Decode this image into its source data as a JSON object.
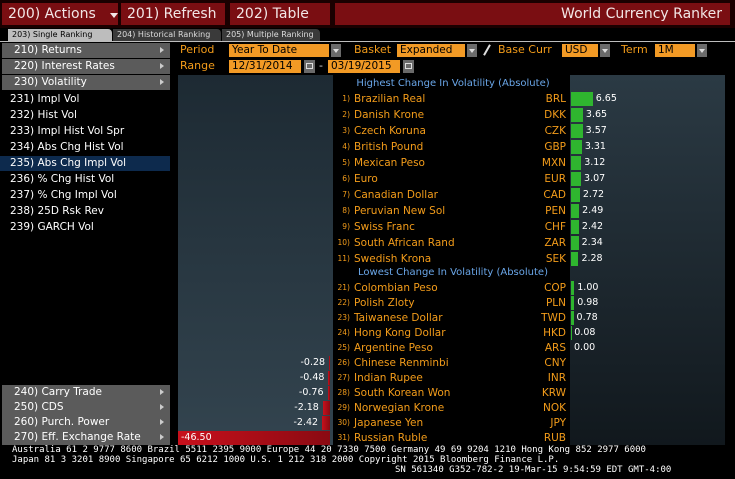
{
  "toolbar": {
    "buttons": [
      "200) Actions",
      "201) Refresh",
      "202) Table"
    ],
    "title": "World Currency Ranker"
  },
  "tabs": [
    "203) Single Ranking",
    "204) Historical Ranking",
    "205) Multiple Ranking"
  ],
  "menu": {
    "top": [
      "210) Returns",
      "220) Interest Rates",
      "230) Volatility"
    ],
    "sub": [
      "231) Impl Vol",
      "232) Hist Vol",
      "233) Impl Hist Vol Spr",
      "234) Abs Chg Hist Vol",
      "235) Abs Chg Impl Vol",
      "236) % Chg Hist Vol",
      "237) % Chg Impl Vol",
      "238) 25D Rsk Rev",
      "239) GARCH Vol"
    ],
    "bottom": [
      "240) Carry Trade",
      "250) CDS",
      "260) Purch. Power",
      "270) Eff. Exchange Rate"
    ]
  },
  "controls": {
    "period_label": "Period",
    "period": "Year To Date",
    "basket_label": "Basket",
    "basket": "Expanded Ma",
    "base_label": "Base Curr",
    "base": "USD",
    "term_label": "Term",
    "term": "1M",
    "range_label": "Range",
    "start": "12/31/2014",
    "separator": "-",
    "end": "03/19/2015"
  },
  "highest": {
    "title": "Highest Change In Volatility (Absolute)",
    "ranks": [
      "1)",
      "2)",
      "3)",
      "4)",
      "5)",
      "6)",
      "7)",
      "8)",
      "9)",
      "10)",
      "11)"
    ],
    "names": [
      "Brazilian Real",
      "Danish Krone",
      "Czech Koruna",
      "British Pound",
      "Mexican Peso",
      "Euro",
      "Canadian Dollar",
      "Peruvian New Sol",
      "Swiss Franc",
      "South African Rand",
      "Swedish Krona"
    ],
    "codes": [
      "BRL",
      "DKK",
      "CZK",
      "GBP",
      "MXN",
      "EUR",
      "CAD",
      "PEN",
      "CHF",
      "ZAR",
      "SEK"
    ],
    "values": [
      6.65,
      3.65,
      3.57,
      3.31,
      3.12,
      3.07,
      2.72,
      2.49,
      2.42,
      2.34,
      2.28
    ],
    "value_labels": [
      "6.65",
      "3.65",
      "3.57",
      "3.31",
      "3.12",
      "3.07",
      "2.72",
      "2.49",
      "2.42",
      "2.34",
      "2.28"
    ]
  },
  "lowest": {
    "title": "Lowest Change In Volatility (Absolute)",
    "ranks": [
      "21)",
      "22)",
      "23)",
      "24)",
      "25)",
      "26)",
      "27)",
      "28)",
      "29)",
      "30)",
      "31)"
    ],
    "names": [
      "Colombian Peso",
      "Polish Zloty",
      "Taiwanese Dollar",
      "Hong Kong Dollar",
      "Argentine Peso",
      "Chinese Renminbi",
      "Indian Rupee",
      "South Korean Won",
      "Norwegian Krone",
      "Japanese Yen",
      "Russian Ruble"
    ],
    "codes": [
      "COP",
      "PLN",
      "TWD",
      "HKD",
      "ARS",
      "CNY",
      "INR",
      "KRW",
      "NOK",
      "JPY",
      "RUB"
    ],
    "values": [
      1.0,
      0.98,
      0.78,
      0.08,
      0.0,
      -0.28,
      -0.48,
      -0.76,
      -2.18,
      -2.42,
      -46.5
    ],
    "value_labels": [
      "1.00",
      "0.98",
      "0.78",
      "0.08",
      "0.00",
      "-0.28",
      "-0.48",
      "-0.76",
      "-2.18",
      "-2.42",
      "-46.50"
    ]
  },
  "footer": [
    "Australia 61 2 9777 8600 Brazil 5511 2395 9000 Europe 44 20 7330 7500 Germany 49 69 9204 1210 Hong Kong 852 2977 6000",
    "Japan 81 3 3201 8900         Singapore 65 6212 1000          U.S. 1 212 318 2000          Copyright 2015 Bloomberg Finance L.P.",
    "SN 561340 G352-782-2 19-Mar-15  9:54:59 EDT  GMT-4:00"
  ]
}
